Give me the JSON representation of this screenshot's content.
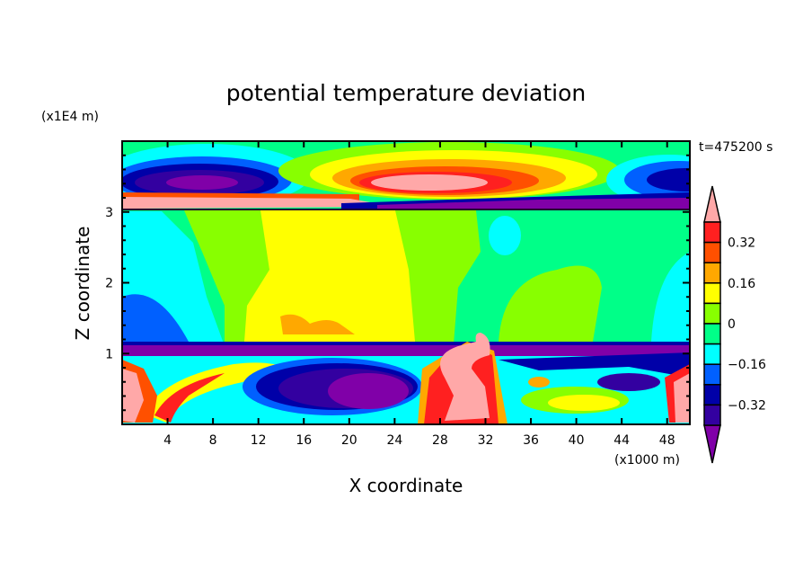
{
  "chart_data": {
    "type": "heatmap",
    "subtype": "filled-contour",
    "title": "potential temperature deviation",
    "xlabel": "X coordinate",
    "ylabel": "Z coordinate",
    "x_unit": "(x1000 m)",
    "y_unit": "(x1E4 m)",
    "time_label": "t=475200 s",
    "xlim": [
      0,
      50
    ],
    "ylim": [
      0,
      4
    ],
    "x_ticks": [
      4,
      8,
      12,
      16,
      20,
      24,
      28,
      32,
      36,
      40,
      44,
      48
    ],
    "y_ticks": [
      1,
      2,
      3
    ],
    "y_minor_step": 0.2,
    "levels": [
      0.4,
      0.32,
      0.24,
      0.16,
      0.08,
      0,
      -0.08,
      -0.16,
      -0.24,
      -0.32,
      -0.4
    ],
    "colorbar_labels": [
      {
        "value": 0.32,
        "text": "0.32"
      },
      {
        "value": 0.16,
        "text": "0.16"
      },
      {
        "value": 0,
        "text": "0"
      },
      {
        "value": -0.16,
        "text": "−0.16"
      },
      {
        "value": -0.32,
        "text": "−0.32"
      }
    ],
    "colors": {
      "above": "#ffa8a8",
      "bands": [
        "#ff2020",
        "#ff5000",
        "#ffa800",
        "#ffff00",
        "#88ff00",
        "#00ff88",
        "#00ffff",
        "#0060ff",
        "#0000a8",
        "#3300a0"
      ],
      "below": "#8000a8"
    },
    "colorbar_extend": "both",
    "grid": false
  }
}
